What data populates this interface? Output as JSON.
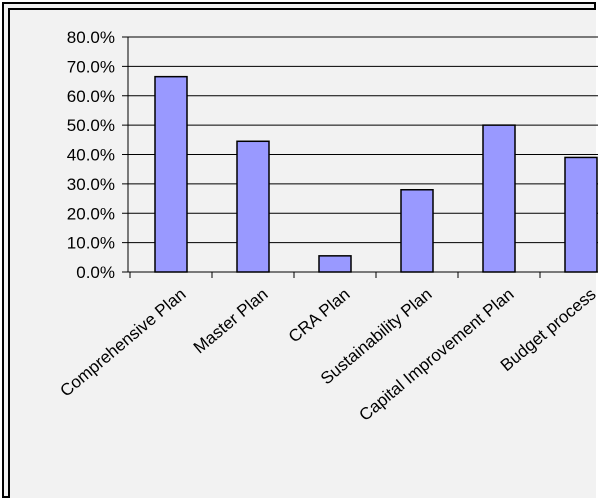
{
  "chart_data": {
    "type": "bar",
    "title": "",
    "xlabel": "",
    "ylabel": "",
    "categories": [
      "Comprehensive Plan",
      "Master Plan",
      "CRA Plan",
      "Sustainability Plan",
      "Capital Improvement Plan",
      "Budget process"
    ],
    "values": [
      66.5,
      44.5,
      5.5,
      28.0,
      50.0,
      39.0
    ],
    "ylim": [
      0,
      80
    ],
    "yticks": [
      "0.0%",
      "10.0%",
      "20.0%",
      "30.0%",
      "40.0%",
      "50.0%",
      "60.0%",
      "70.0%",
      "80.0%"
    ],
    "grid": true,
    "legend": "none",
    "colors": {
      "bar": "#9999ff",
      "bar_border": "#000000",
      "gridline": "#000000",
      "background": "#f2f2f2"
    }
  }
}
